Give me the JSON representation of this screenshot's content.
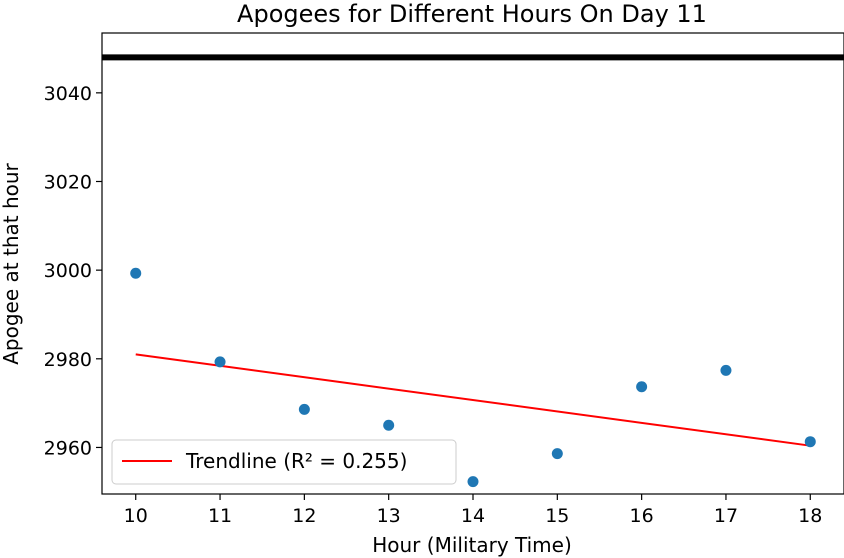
{
  "chart_data": {
    "type": "scatter",
    "title": "Apogees for Different Hours On Day 11",
    "xlabel": "Hour (Military Time)",
    "ylabel": "Apogee at that hour",
    "xlim": [
      9.6,
      18.4
    ],
    "ylim": [
      2949.5,
      3053.5
    ],
    "x_ticks": [
      10,
      11,
      12,
      13,
      14,
      15,
      16,
      17,
      18
    ],
    "y_ticks": [
      2960,
      2980,
      3000,
      3020,
      3040
    ],
    "grid": false,
    "legend_position": "lower-left",
    "series": [
      {
        "type": "scatter",
        "color": "#1f77b4",
        "x": [
          10,
          11,
          12,
          13,
          14,
          15,
          16,
          17,
          18
        ],
        "y": [
          2999.3,
          2979.3,
          2968.6,
          2965.0,
          2952.3,
          2958.6,
          2973.7,
          2977.4,
          2961.3
        ]
      },
      {
        "type": "line",
        "name": "Trendline (R² = 0.255)",
        "color": "#ff0000",
        "x": [
          10,
          18
        ],
        "y": [
          2981.0,
          2960.4
        ]
      },
      {
        "type": "hline",
        "color": "#000000",
        "y": 3048
      }
    ]
  }
}
